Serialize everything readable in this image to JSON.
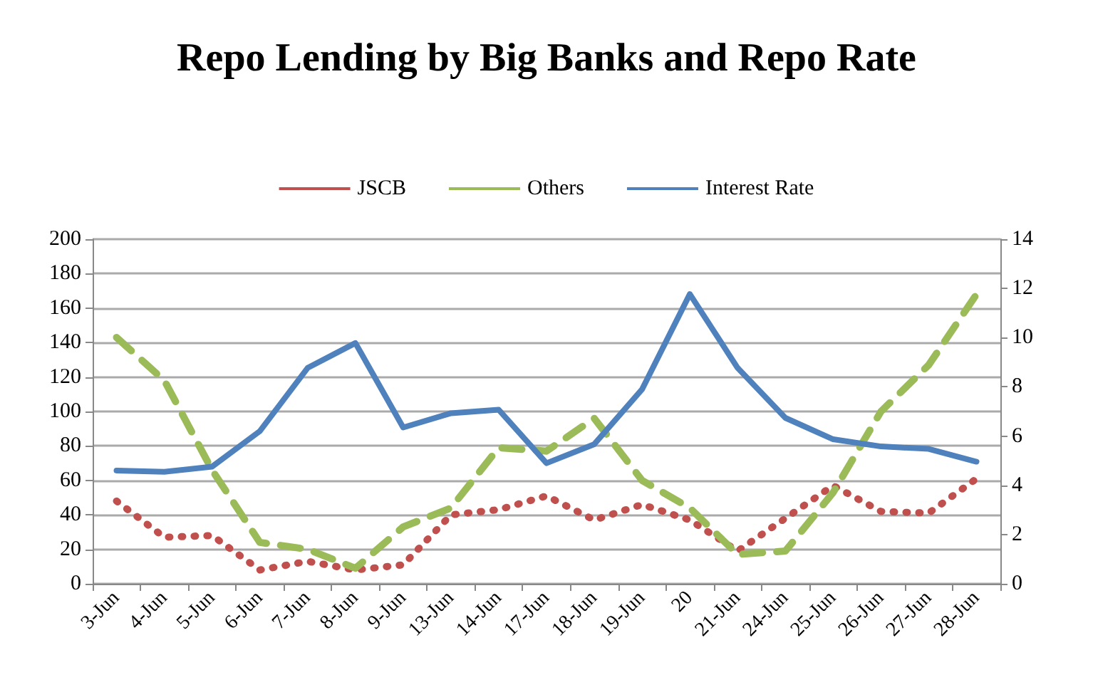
{
  "chart_data": {
    "type": "line",
    "title": "Repo Lending by Big Banks and Repo Rate",
    "categories": [
      "3-Jun",
      "4-Jun",
      "5-Jun",
      "6-Jun",
      "7-Jun",
      "8-Jun",
      "9-Jun",
      "13-Jun",
      "14-Jun",
      "17-Jun",
      "18-Jun",
      "19-Jun",
      "20",
      "21-Jun",
      "24-Jun",
      "25-Jun",
      "26-Jun",
      "27-Jun",
      "28-Jun"
    ],
    "series": [
      {
        "name": "JSCB",
        "color": "#c0504d",
        "line_style": "dotted",
        "values": [
          48,
          27,
          28,
          8,
          13,
          8,
          11,
          40,
          43,
          51,
          37,
          46,
          37,
          19,
          38,
          57,
          42,
          41,
          61
        ]
      },
      {
        "name": "Others",
        "color": "#9bbb59",
        "line_style": "dashed",
        "values": [
          143,
          118,
          66,
          24,
          20,
          9,
          33,
          44,
          79,
          77,
          96,
          60,
          44,
          17,
          19,
          53,
          100,
          127,
          168
        ]
      },
      {
        "name": "Interest Rate",
        "color": "#4f81bd",
        "line_style": "solid",
        "axis": "y2",
        "values": [
          4.6,
          4.55,
          4.76,
          6.2,
          8.77,
          9.78,
          6.35,
          6.93,
          7.07,
          4.9,
          5.67,
          7.9,
          11.77,
          8.77,
          6.74,
          5.87,
          5.58,
          5.48,
          4.96
        ]
      }
    ],
    "ylim": [
      0,
      200
    ],
    "yticks": [
      0,
      20,
      40,
      60,
      80,
      100,
      120,
      140,
      160,
      180,
      200
    ],
    "y2lim": [
      0,
      14
    ],
    "y2ticks": [
      0,
      2,
      4,
      6,
      8,
      10,
      12,
      14
    ],
    "grid": "y",
    "legend": "top",
    "marker": "none"
  }
}
